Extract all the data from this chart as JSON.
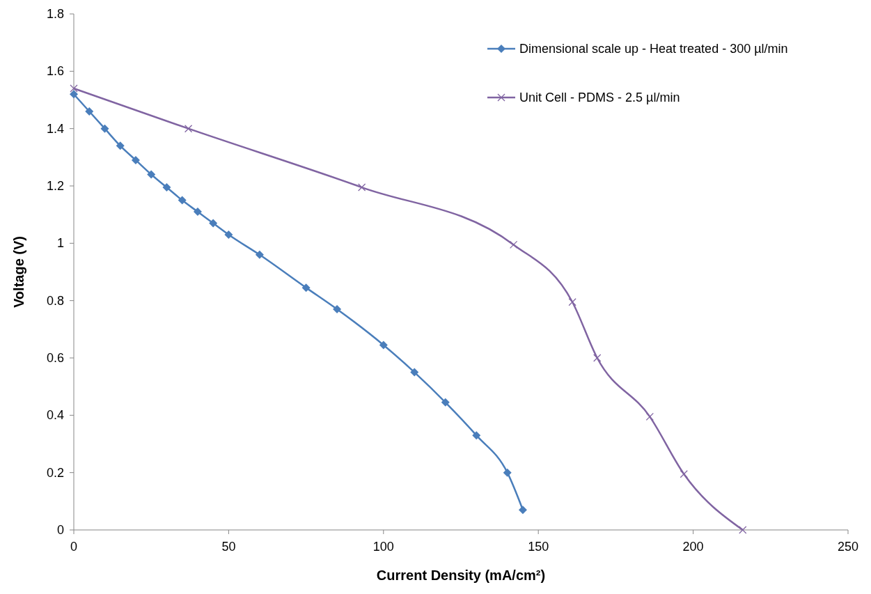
{
  "chart_data": {
    "type": "line",
    "xlabel": "Current Density  (mA/cm²)",
    "ylabel": "Voltage (V)",
    "xlim": [
      0,
      250
    ],
    "xticks": [
      0,
      50,
      100,
      150,
      200,
      250
    ],
    "ylim": [
      0,
      1.8
    ],
    "yticks": [
      0,
      0.2,
      0.4,
      0.6,
      0.8,
      1,
      1.2,
      1.4,
      1.6,
      1.8
    ],
    "grid": false,
    "legend": "top right",
    "series": [
      {
        "name": "Dimensional scale up - Heat treated - 300 µl/min",
        "color": "#4a7ebb",
        "marker": "diamond",
        "x": [
          0,
          5,
          10,
          15,
          20,
          25,
          30,
          35,
          40,
          45,
          50,
          60,
          75,
          85,
          100,
          110,
          120,
          130,
          140,
          145
        ],
        "values": [
          1.52,
          1.46,
          1.4,
          1.34,
          1.29,
          1.24,
          1.195,
          1.15,
          1.11,
          1.07,
          1.03,
          0.96,
          0.845,
          0.77,
          0.645,
          0.55,
          0.445,
          0.33,
          0.2,
          0.07
        ]
      },
      {
        "name": "Unit Cell - PDMS - 2.5 µl/min",
        "color": "#8064a2",
        "marker": "cross",
        "x": [
          0,
          37,
          93,
          142,
          161,
          169,
          186,
          197,
          216
        ],
        "values": [
          1.54,
          1.4,
          1.195,
          0.995,
          0.795,
          0.6,
          0.395,
          0.195,
          0
        ]
      }
    ]
  }
}
